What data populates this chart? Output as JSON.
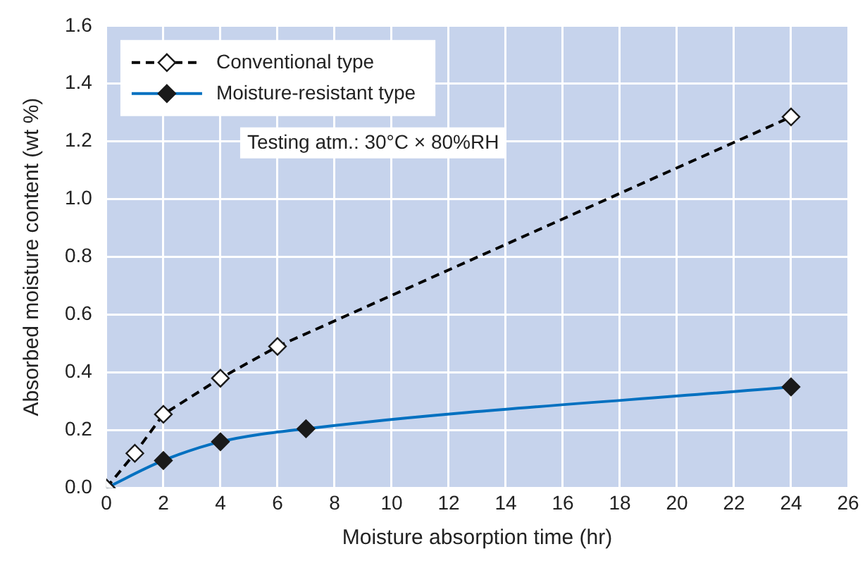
{
  "chart_data": {
    "type": "line",
    "xlabel": "Moisture absorption time (hr)",
    "ylabel": "Absorbed moisture content (wt %)",
    "annotations": [
      "Testing atm.: 30°C × 80%RH"
    ],
    "series": [
      {
        "name": "Conventional type",
        "color": "#000000",
        "line_style": "dashed",
        "x": [
          0,
          1,
          2,
          4,
          6,
          24
        ],
        "values": [
          0,
          0.12,
          0.255,
          0.38,
          0.49,
          1.285
        ]
      },
      {
        "name": "Moisture-resistant type",
        "color": "#0070c0",
        "line_style": "solid",
        "x": [
          0,
          2,
          4,
          7,
          24
        ],
        "values": [
          0,
          0.095,
          0.16,
          0.205,
          0.35
        ]
      }
    ],
    "xlim": [
      0,
      26
    ],
    "xticks": [
      0,
      2,
      4,
      6,
      8,
      10,
      12,
      14,
      16,
      18,
      20,
      22,
      24,
      26
    ],
    "ylim": [
      0,
      1.6
    ],
    "yticks": [
      {
        "value": 0,
        "label": "0.0"
      },
      {
        "value": 0.2,
        "label": "0.2"
      },
      {
        "value": 0.4,
        "label": "0.4"
      },
      {
        "value": 0.6,
        "label": "0.6"
      },
      {
        "value": 0.8,
        "label": "0.8"
      },
      {
        "value": 1,
        "label": "1.0"
      },
      {
        "value": 1.2,
        "label": "1.2"
      },
      {
        "value": 1.4,
        "label": "1.4"
      },
      {
        "value": 1.6,
        "label": "1.6"
      }
    ],
    "grid": true,
    "legend": "top left",
    "marker": "diamond"
  }
}
